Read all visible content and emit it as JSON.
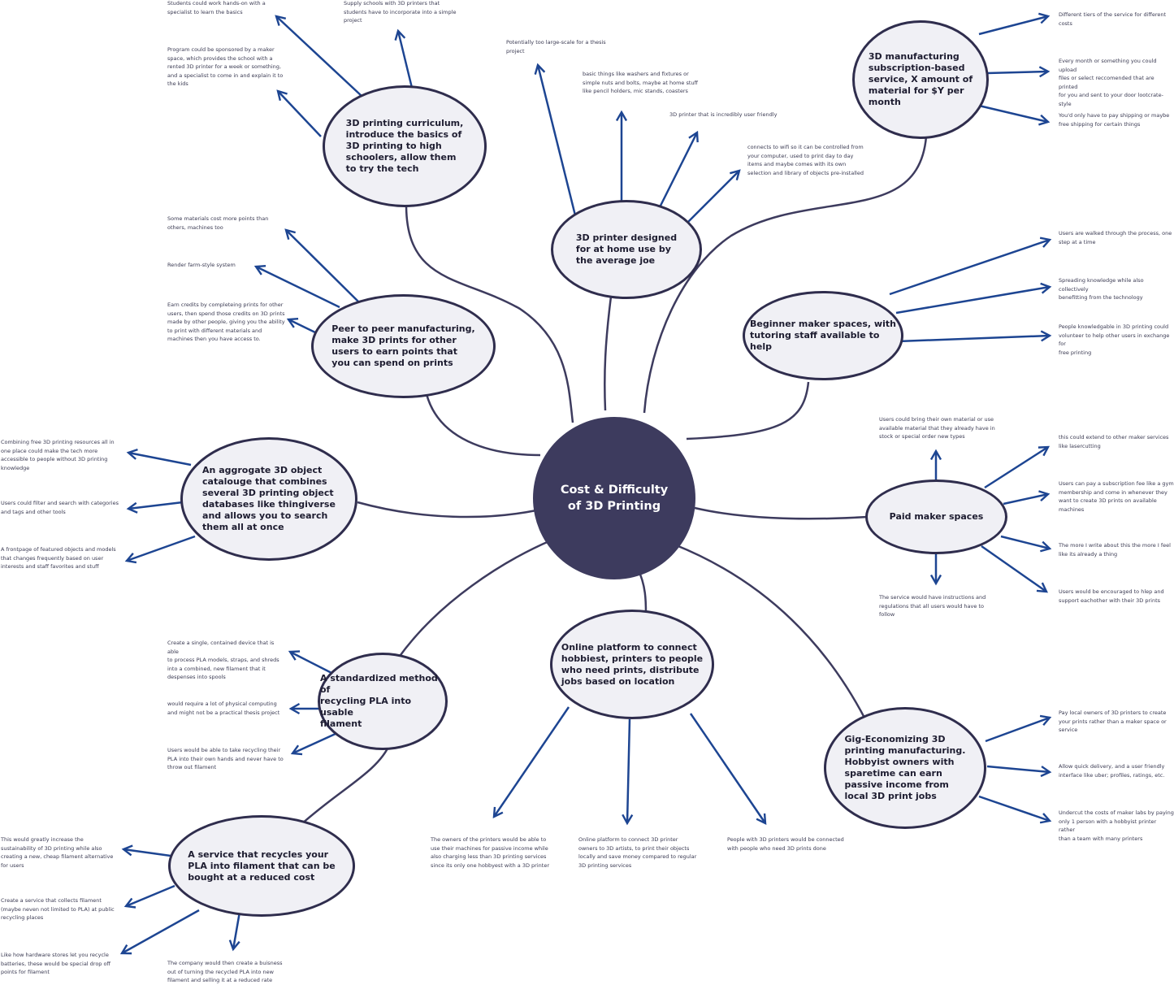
{
  "center": {
    "label": "Cost & Difficulty\nof 3D Printing"
  },
  "colors": {
    "center_fill": "#3d3b5e",
    "node_fill": "#f0f0f5",
    "node_border": "#2f2d4d",
    "branch_line": "#3d3b5e",
    "arrow": "#1d4592"
  },
  "nodes": {
    "curriculum": "3D printing  curriculum,\nintroduce the basics of\n3D printing to high\nschoolers, allow them\nto try the tech",
    "home_printer": "3D printer designed\nfor at home use by\nthe average joe",
    "subscription": "3D manufacturing\nsubscription-based\nservice, X amount of\nmaterial for $Y per\nmonth",
    "p2p": "Peer to peer manufacturing,\nmake 3D prints for other\nusers to earn points that\nyou can spend on prints",
    "beginner_spaces": "Beginner maker spaces, with\ntutoring staff available to\nhelp",
    "aggregate": "An aggrogate 3D object\ncatalouge that combines\nseveral 3D printing object\ndatabases like thingiverse\nand allows you to search\nthem all at once",
    "paid_spaces": "Paid maker spaces",
    "recycling_method": "A standardized method of\nrecycling PLA into usable\nfilament",
    "online_platform": "Online platform to connect\nhobbiest, printers to people\nwho need prints, distribute\njobs based on location",
    "gig": "Gig-Economizing 3D\nprinting manufacturing.\nHobbyist owners with\nsparetime can earn\npassive income from\nlocal 3D print jobs",
    "recycle_service": "A service that recycles your\nPLA into filament that can be\nbought at a reduced cost"
  },
  "notes": {
    "cur_1": "Students could work hands-on with a\nspecialist to learn the basics",
    "cur_2": "Supply schools with 3D printers that\nstudents have to incorporate into a simple\nproject",
    "cur_3": "Program could be sponsored by a maker\nspace, which provides the school with a\nrented 3D printer for a week or something,\nand a specialist to come in and explain it to\nthe kids",
    "home_1": "Potentially too large-scale for a thesis\nproject",
    "home_2": "basic things like washers and fixtures or\nsimple nuts and bolts, maybe at home stuff\nlike pencil holders, mic stands, coasters",
    "home_3": "3D printer that is incredibly user friendly",
    "home_4": "connects to wifi so it can be controlled from\nyour computer, used to print day to day\nitems and maybe comes with its own\nselection and library of objects pre-installed",
    "sub_1": "Different tiers of the service for different\ncosts",
    "sub_2": "Every month or something you could upload\nfiles or select reccomended that are printed\nfor you and sent to your door lootcrate-style",
    "sub_3": "You'd only have to pay shipping or maybe\nfree shipping for certain things",
    "p2p_1": "Some materials cost more points than\nothers, machines too",
    "p2p_2": "Render farm-style system",
    "p2p_3": "Earn credits by completeing prints for other\nusers, then spend those credits on 3D prints\nmade by other people, giving you the ability\nto print with different materials and\nmachines then you have access to.",
    "beg_1": "Users are walked through the process, one\nstep at a time",
    "beg_2": "Spreading knowledge while also collectively\nbenefitting from the technology",
    "beg_3": "People knowledgable in 3D printing could\nvolunteer to help other users in exchange for\nfree printing",
    "agg_1": "Combining free 3D printing resources all in\none place could make the tech more\naccessible to people without 3D printing\nknowledge",
    "agg_2": "Users could filter and search with categories\nand tags and other tools",
    "agg_3": "A frontpage of featured objects and models\nthat changes frequently based on user\ninterests and staff favorites and stuff",
    "paid_1": "Users could bring their own material or use\navailable material that they already have in\nstock or special order new types",
    "paid_2": "this could extend to other maker services\nlike lasercutting",
    "paid_3": "Users can pay a subscription fee like a gym\nmembership and come in whenever they\nwant to create 3D prints on available\nmachines",
    "paid_4": "The more I write about this the more I feel\nlike its already a thing",
    "paid_5": "Users would be encouraged to hlep and\nsupport eachother with their 3D prints",
    "paid_6": "The service would have instructions and\nregulations that all users would have to\nfollow",
    "rec_1": "Create a single, contained device that is\nable\nto process PLA models, straps, and shreds\ninto a combined, new filament that it\ndespenses into spools",
    "rec_2": "would require a lot of physical computing\nand might not be a practical thesis project",
    "rec_3": "Users would be able to take recycling their\nPLA into their own hands and never have to\nthrow out filament",
    "onl_1": "The owners of the printers would be able to\nuse their machines for passive income while\nalso charging less than 3D printing services\nsince its only one hobbyest with a 3D printer",
    "onl_2": "Online platform to connect 3D printer\nowners to 3D artists, to print their objects\nlocally and save money compared to regular\n3D printing services",
    "onl_3": "People with 3D printers would be connected\nwith people who need 3D prints done",
    "gig_1": "Pay local owners of 3D printers to create\nyour prints rather than a maker space or\nservice",
    "gig_2": "Allow quick delivery, and a user friendly\ninterface like uber; profiles, ratings, etc.",
    "gig_3": "Undercut the costs of maker labs by paying\nonly 1 person with a hobbyist printer rather\nthan a team with many printers",
    "svc_1": "This would greatly increase the\nsustainability of 3D printing while also\ncreating a new, cheap filament alternative\nfor users",
    "svc_2": "Create a service that collects filament\n(maybe neven not limited to PLA) at public\nrecycling places",
    "svc_3": "Like how hardware stores let you recycle\nbatteries, these would be special drop off\npoints for filament",
    "svc_4": "The company would then create a buisness\nout of turning the recycled PLA into new\nfilament and selling it at a reduced rate"
  }
}
